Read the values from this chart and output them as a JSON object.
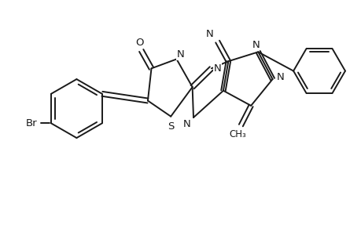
{
  "bg_color": "#ffffff",
  "line_color": "#1a1a1a",
  "line_width": 1.4,
  "font_size": 9.5,
  "figsize": [
    4.6,
    3.0
  ],
  "dpi": 100,
  "xlim": [
    0,
    10
  ],
  "ylim": [
    0,
    6.5
  ]
}
